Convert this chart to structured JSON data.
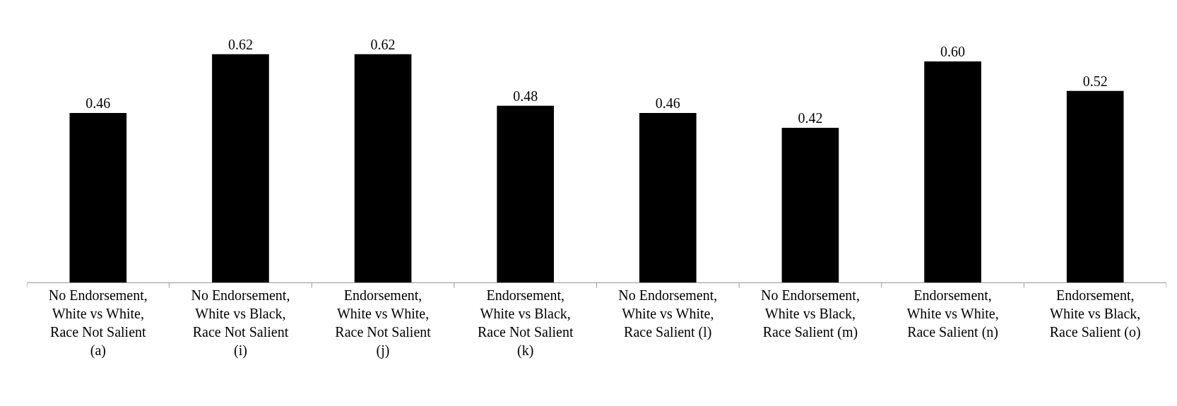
{
  "chart_data": {
    "type": "bar",
    "categories": [
      "No Endorsement,\nWhite vs White,\nRace Not Salient\n(a)",
      "No Endorsement,\nWhite vs Black,\nRace Not Salient\n(i)",
      "Endorsement,\nWhite vs White,\nRace Not Salient\n(j)",
      "Endorsement,\nWhite vs Black,\nRace Not Salient\n(k)",
      "No Endorsement,\nWhite vs White,\nRace Salient (l)",
      "No Endorsement,\nWhite vs Black,\nRace Salient (m)",
      "Endorsement,\nWhite vs White,\nRace Salient (n)",
      "Endorsement,\nWhite vs Black,\nRace Salient (o)"
    ],
    "values": [
      0.46,
      0.62,
      0.62,
      0.48,
      0.46,
      0.42,
      0.6,
      0.52
    ],
    "value_labels": [
      "0.46",
      "0.62",
      "0.62",
      "0.48",
      "0.46",
      "0.42",
      "0.60",
      "0.52"
    ],
    "color": "#000000"
  }
}
